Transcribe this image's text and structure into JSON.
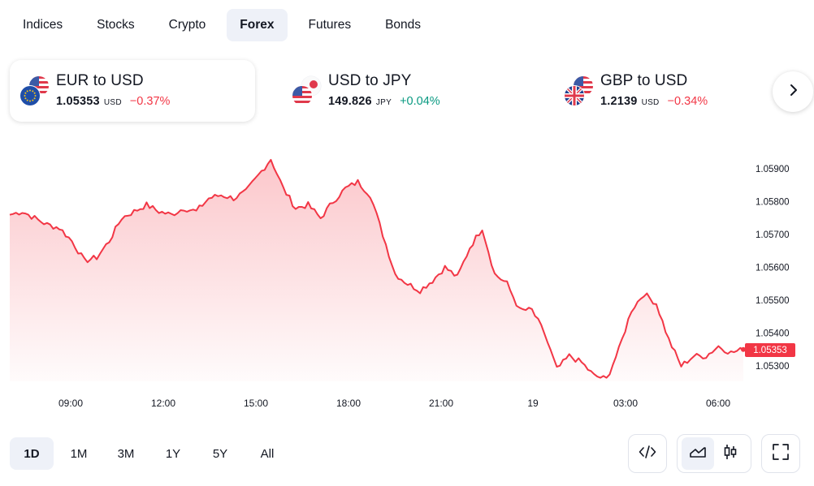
{
  "market_tabs": [
    "Indices",
    "Stocks",
    "Crypto",
    "Forex",
    "Futures",
    "Bonds"
  ],
  "active_market_tab": "Forex",
  "cards": [
    {
      "title": "EUR to USD",
      "price": "1.05353",
      "currency": "USD",
      "change": "−0.37%",
      "direction": "down"
    },
    {
      "title": "USD to JPY",
      "price": "149.826",
      "currency": "JPY",
      "change": "+0.04%",
      "direction": "up"
    },
    {
      "title": "GBP to USD",
      "price": "1.2139",
      "currency": "USD",
      "change": "−0.34%",
      "direction": "down"
    }
  ],
  "colors": {
    "accent": "#f23645",
    "positive": "#089981",
    "active_tab_bg": "#eef1f8"
  },
  "chart_data": {
    "type": "area",
    "series": [
      {
        "values": [
          1.0576,
          1.0577,
          1.0575,
          1.0573,
          1.0572,
          1.0568,
          1.0562,
          1.0563,
          1.0568,
          1.0575,
          1.0577,
          1.0579,
          1.0577,
          1.0576,
          1.0578,
          1.0577,
          1.0581,
          1.0582,
          1.0581,
          1.0583,
          1.0588,
          1.0593,
          1.0584,
          1.0578,
          1.0579,
          1.0575,
          1.058,
          1.0584,
          1.0586,
          1.0582,
          1.057,
          1.0558,
          1.0555,
          1.0553,
          1.0556,
          1.056,
          1.0557,
          1.0566,
          1.0572,
          1.0558,
          1.0555,
          1.0547,
          1.0547,
          1.054,
          1.0529,
          1.0533,
          1.0531,
          1.0527,
          1.0526,
          1.0535,
          1.0547,
          1.0552,
          1.0549,
          1.0538,
          1.053,
          1.0533,
          1.0533,
          1.0536,
          1.0534,
          1.0535
        ]
      }
    ],
    "x_tick_labels": [
      "09:00",
      "12:00",
      "15:00",
      "18:00",
      "21:00",
      "19",
      "03:00",
      "06:00"
    ],
    "y_tick_labels": [
      "1.05900",
      "1.05800",
      "1.05700",
      "1.05600",
      "1.05500",
      "1.05400",
      "1.05300"
    ],
    "ylim": [
      1.0525,
      1.0596
    ],
    "last_value_label": "1.05353",
    "grid": false
  },
  "ranges": [
    "1D",
    "1M",
    "3M",
    "1Y",
    "5Y",
    "All"
  ],
  "active_range": "1D",
  "tools": {
    "embed": "code-icon",
    "area": "area-chart-icon",
    "candles": "candlestick-icon",
    "fullscreen": "fullscreen-icon"
  }
}
